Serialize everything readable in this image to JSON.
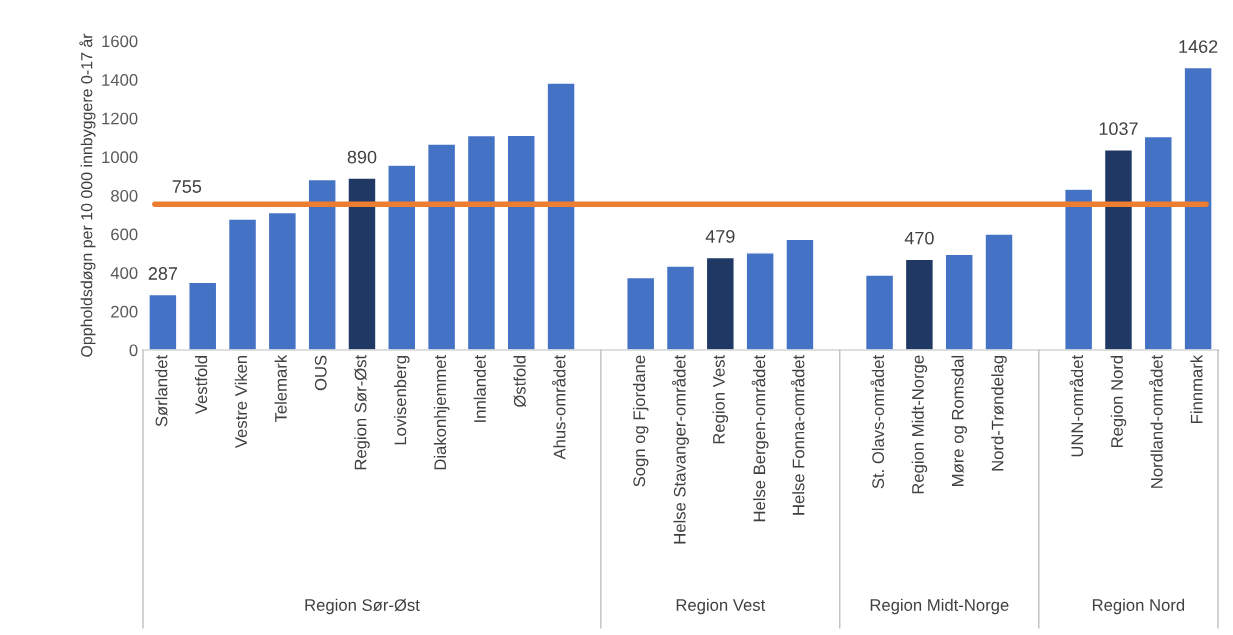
{
  "chart_data": {
    "type": "bar",
    "ylabel": "Oppholdsdøgn per 10 000 innbyggere 0-17 år",
    "categories": [
      "Sørlandet",
      "Vestfold",
      "Vestre Viken",
      "Telemark",
      "OUS",
      "Region Sør-Øst",
      "Lovisenberg",
      "Diakonhjemmet",
      "Innlandet",
      "Østfold",
      "Ahus-området",
      null,
      "Sogn og Fjordane",
      "Helse Stavanger-området",
      "Region Vest",
      "Helse Bergen-området",
      "Helse Fonna-området",
      null,
      "St. Olavs-området",
      "Region Midt-Norge",
      "Møre og Romsdal",
      "Nord-Trøndelag",
      null,
      "UNN-området",
      "Region Nord",
      "Nordland-området",
      "Finnmark"
    ],
    "values": [
      287,
      350,
      678,
      712,
      883,
      890,
      957,
      1067,
      1110,
      1112,
      1382,
      null,
      375,
      435,
      479,
      503,
      573,
      null,
      388,
      470,
      495,
      601,
      null,
      833,
      1037,
      1105,
      1462
    ],
    "colors": [
      "#4472c4",
      "#4472c4",
      "#4472c4",
      "#4472c4",
      "#4472c4",
      "#203864",
      "#4472c4",
      "#4472c4",
      "#4472c4",
      "#4472c4",
      "#4472c4",
      null,
      "#4472c4",
      "#4472c4",
      "#203864",
      "#4472c4",
      "#4472c4",
      null,
      "#4472c4",
      "#203864",
      "#4472c4",
      "#4472c4",
      null,
      "#4472c4",
      "#203864",
      "#4472c4",
      "#4472c4"
    ],
    "value_labels": [
      "287",
      null,
      null,
      null,
      null,
      "890",
      null,
      null,
      null,
      null,
      null,
      null,
      null,
      null,
      "479",
      null,
      null,
      null,
      null,
      "470",
      null,
      null,
      null,
      null,
      "1037",
      null,
      "1462"
    ],
    "ref_lines": [
      {
        "axis": "y",
        "value": 755,
        "label": "755",
        "color": "#ed7d31"
      }
    ],
    "annotations": [
      "Region Sør-Øst",
      "Region Vest",
      "Region Midt-Norge",
      "Region Nord"
    ],
    "ylim": [
      0,
      1600
    ],
    "yticks": [
      0,
      200,
      400,
      600,
      800,
      1000,
      1200,
      1400,
      1600
    ],
    "grid": false,
    "legend": false
  }
}
